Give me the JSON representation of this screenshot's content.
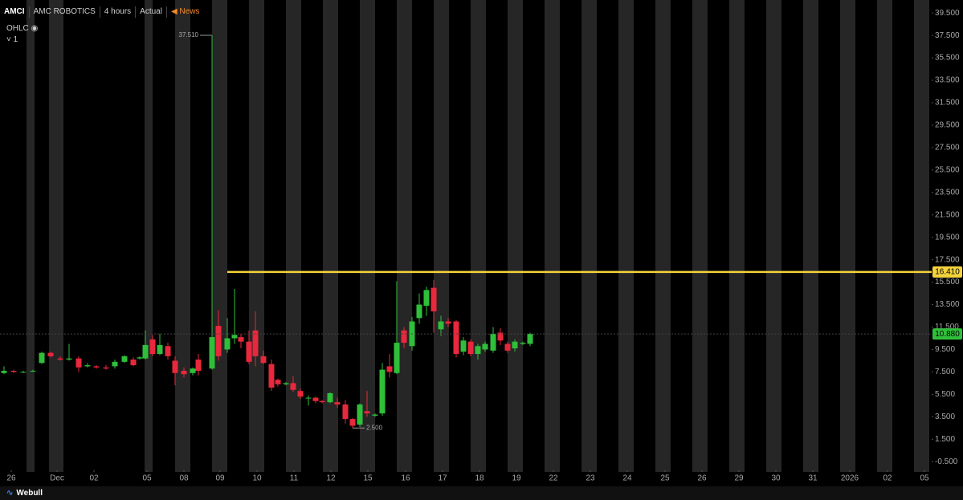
{
  "header": {
    "symbol": "AMCI",
    "name": "AMC ROBOTICS",
    "interval": "4 hours",
    "mode": "Actual",
    "news": "News",
    "indicator": "OHLC",
    "pane": "1",
    "brand": "Webull"
  },
  "chart_data": {
    "type": "candlestick",
    "up_color": "#2fbf3a",
    "down_color": "#e8283c",
    "xlim": [
      0,
      116
    ],
    "xticks": [
      {
        "value": 1.4,
        "label": "26"
      },
      {
        "value": 7.1,
        "label": "Dec"
      },
      {
        "value": 11.7,
        "label": "02"
      },
      {
        "value": 18.3,
        "label": "05"
      },
      {
        "value": 22.9,
        "label": "08"
      },
      {
        "value": 27.4,
        "label": "09"
      },
      {
        "value": 32.0,
        "label": "10"
      },
      {
        "value": 36.6,
        "label": "11"
      },
      {
        "value": 41.2,
        "label": "12"
      },
      {
        "value": 45.8,
        "label": "15"
      },
      {
        "value": 50.5,
        "label": "16"
      },
      {
        "value": 55.1,
        "label": "17"
      },
      {
        "value": 59.7,
        "label": "18"
      },
      {
        "value": 64.3,
        "label": "19"
      },
      {
        "value": 68.9,
        "label": "22"
      },
      {
        "value": 73.5,
        "label": "23"
      },
      {
        "value": 78.1,
        "label": "24"
      },
      {
        "value": 82.8,
        "label": "25"
      },
      {
        "value": 87.4,
        "label": "26"
      },
      {
        "value": 92.0,
        "label": "29"
      },
      {
        "value": 96.6,
        "label": "30"
      },
      {
        "value": 101.2,
        "label": "31"
      },
      {
        "value": 105.8,
        "label": "2026"
      },
      {
        "value": 110.5,
        "label": "02"
      },
      {
        "value": 115.1,
        "label": "05"
      }
    ],
    "ylim": [
      -1.2,
      40.3
    ],
    "yticks": [
      {
        "value": -0.5,
        "label": "-0.500"
      },
      {
        "value": 1.5,
        "label": "1.500"
      },
      {
        "value": 3.5,
        "label": "3.500"
      },
      {
        "value": 5.5,
        "label": "5.500"
      },
      {
        "value": 7.5,
        "label": "7.500"
      },
      {
        "value": 9.5,
        "label": "9.500"
      },
      {
        "value": 11.5,
        "label": "11.500"
      },
      {
        "value": 13.5,
        "label": "13.500"
      },
      {
        "value": 15.5,
        "label": "15.500"
      },
      {
        "value": 17.5,
        "label": "17.500"
      },
      {
        "value": 19.5,
        "label": "19.500"
      },
      {
        "value": 21.5,
        "label": "21.500"
      },
      {
        "value": 23.5,
        "label": "23.500"
      },
      {
        "value": 25.5,
        "label": "25.500"
      },
      {
        "value": 27.5,
        "label": "27.500"
      },
      {
        "value": 29.5,
        "label": "29.500"
      },
      {
        "value": 31.5,
        "label": "31.500"
      },
      {
        "value": 33.5,
        "label": "33.500"
      },
      {
        "value": 35.5,
        "label": "35.500"
      },
      {
        "value": 37.5,
        "label": "37.500"
      },
      {
        "value": 39.5,
        "label": "39.500"
      }
    ],
    "x": [
      0.5,
      1.7,
      2.9,
      4.1,
      5.2,
      6.3,
      7.5,
      8.6,
      9.8,
      10.9,
      12.0,
      13.2,
      14.3,
      15.5,
      16.6,
      17.4,
      18.1,
      19.0,
      19.9,
      20.9,
      21.8,
      22.9,
      24.0,
      24.7,
      26.4,
      27.2,
      28.3,
      29.2,
      30.0,
      31.0,
      31.8,
      32.8,
      33.8,
      34.6,
      35.6,
      36.5,
      37.4,
      38.4,
      39.3,
      40.1,
      41.1,
      42.0,
      43.0,
      43.9,
      44.8,
      45.7,
      46.7,
      47.6,
      48.5,
      49.4,
      50.3,
      51.3,
      52.2,
      53.1,
      54.0,
      54.9,
      55.8,
      56.8,
      57.7,
      58.6,
      59.5,
      60.4,
      61.4,
      62.3,
      63.2,
      64.1,
      65.1,
      66.0
    ],
    "open": [
      7.4,
      7.6,
      7.5,
      7.6,
      8.3,
      9.2,
      8.7,
      8.6,
      8.7,
      8.0,
      8.0,
      7.9,
      8.0,
      8.4,
      8.6,
      8.7,
      8.7,
      10.4,
      9.1,
      9.8,
      8.5,
      7.6,
      7.4,
      8.6,
      7.8,
      11.6,
      9.5,
      10.5,
      10.6,
      10.2,
      11.2,
      8.9,
      8.2,
      6.8,
      6.4,
      6.5,
      5.8,
      5.2,
      5.2,
      4.9,
      4.8,
      4.8,
      4.6,
      3.3,
      2.8,
      4.0,
      3.6,
      3.8,
      8.0,
      7.4,
      11.2,
      9.8,
      12.3,
      13.4,
      15.0,
      11.3,
      12.0,
      12.0,
      9.3,
      10.2,
      9.1,
      9.5,
      9.4,
      11.0,
      10.0,
      9.6,
      10.0,
      10.0
    ],
    "high": [
      8.0,
      7.7,
      7.6,
      7.7,
      9.3,
      9.3,
      8.9,
      10.0,
      8.9,
      8.3,
      8.1,
      8.1,
      8.6,
      9.0,
      8.8,
      8.9,
      11.2,
      10.8,
      10.9,
      10.1,
      8.9,
      7.9,
      7.9,
      9.1,
      37.51,
      13.0,
      12.3,
      14.9,
      10.9,
      11.2,
      12.9,
      9.4,
      8.6,
      6.9,
      6.6,
      7.1,
      6.0,
      5.4,
      5.3,
      5.0,
      5.7,
      5.2,
      5.0,
      3.4,
      4.7,
      5.8,
      3.8,
      8.3,
      9.1,
      15.6,
      11.5,
      12.4,
      14.5,
      15.1,
      15.7,
      12.5,
      12.3,
      12.1,
      10.6,
      10.4,
      10.0,
      10.2,
      11.5,
      11.4,
      10.2,
      10.4,
      10.2,
      11.0
    ],
    "low": [
      7.3,
      7.4,
      7.4,
      7.5,
      8.2,
      8.8,
      8.5,
      8.5,
      7.5,
      7.9,
      7.8,
      7.7,
      7.8,
      8.3,
      8.0,
      8.6,
      8.6,
      8.9,
      9.0,
      8.6,
      6.3,
      7.0,
      7.2,
      7.2,
      7.7,
      8.5,
      9.2,
      10.0,
      9.6,
      8.2,
      8.0,
      8.2,
      5.8,
      6.2,
      6.3,
      5.7,
      5.1,
      4.5,
      4.7,
      4.7,
      4.7,
      4.3,
      2.9,
      2.5,
      2.6,
      3.5,
      3.5,
      3.6,
      7.0,
      7.3,
      9.6,
      9.4,
      11.8,
      12.5,
      11.0,
      10.7,
      11.5,
      8.8,
      9.0,
      8.9,
      8.6,
      9.3,
      9.2,
      9.9,
      9.2,
      9.3,
      9.9,
      9.8
    ],
    "close": [
      7.6,
      7.5,
      7.5,
      7.6,
      9.2,
      8.9,
      8.6,
      8.7,
      7.9,
      8.1,
      7.9,
      7.8,
      8.4,
      8.9,
      8.1,
      8.8,
      9.9,
      9.1,
      9.9,
      8.9,
      7.4,
      7.3,
      7.8,
      7.6,
      10.6,
      8.9,
      10.5,
      10.8,
      10.2,
      8.4,
      8.9,
      8.3,
      6.1,
      6.4,
      6.5,
      5.9,
      5.3,
      5.2,
      4.9,
      4.8,
      5.6,
      4.6,
      3.3,
      2.7,
      4.6,
      3.8,
      3.7,
      7.7,
      7.5,
      10.1,
      10.1,
      12.0,
      13.5,
      14.8,
      12.9,
      12.0,
      11.8,
      9.1,
      10.3,
      9.1,
      9.8,
      10.0,
      10.9,
      10.3,
      9.4,
      10.2,
      10.1,
      10.9
    ],
    "high_marker": {
      "x": 26.4,
      "value": 37.51,
      "label": "37.510"
    },
    "low_marker": {
      "x": 43.9,
      "value": 2.5,
      "label": "2.500"
    },
    "level_line": {
      "value": 16.41,
      "label": "16.410",
      "start": 28.3,
      "color": "#f5d33c"
    },
    "last_price": {
      "value": 10.88,
      "label": "10.880",
      "color": "#2fbf3a"
    }
  }
}
